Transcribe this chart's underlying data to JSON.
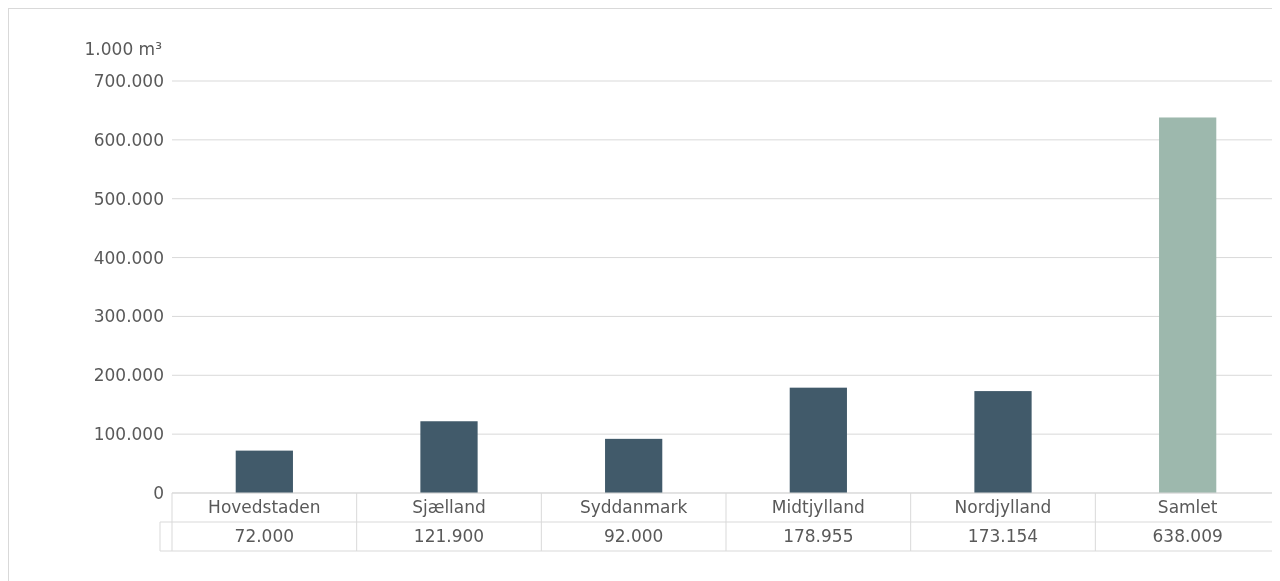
{
  "chart_data": {
    "type": "bar",
    "ylabel": "1.000 m³",
    "categories": [
      "Hovedstaden",
      "Sjælland",
      "Syddanmark",
      "Midtjylland",
      "Nordjylland",
      "Samlet"
    ],
    "values": [
      72000,
      121900,
      92000,
      178955,
      173154,
      638009
    ],
    "colors": [
      "#415a6a",
      "#415a6a",
      "#415a6a",
      "#415a6a",
      "#415a6a",
      "#9db8ad"
    ],
    "value_labels": [
      "72.000",
      "121.900",
      "92.000",
      "178.955",
      "173.154",
      "638.009"
    ],
    "ylim": [
      0,
      700000
    ],
    "yticks": [
      {
        "value": 0,
        "label": "0"
      },
      {
        "value": 100000,
        "label": "100.000"
      },
      {
        "value": 200000,
        "label": "200.000"
      },
      {
        "value": 300000,
        "label": "300.000"
      },
      {
        "value": 400000,
        "label": "400.000"
      },
      {
        "value": 500000,
        "label": "500.000"
      },
      {
        "value": 600000,
        "label": "600.000"
      },
      {
        "value": 700000,
        "label": "700.000"
      }
    ],
    "grid": "y"
  }
}
